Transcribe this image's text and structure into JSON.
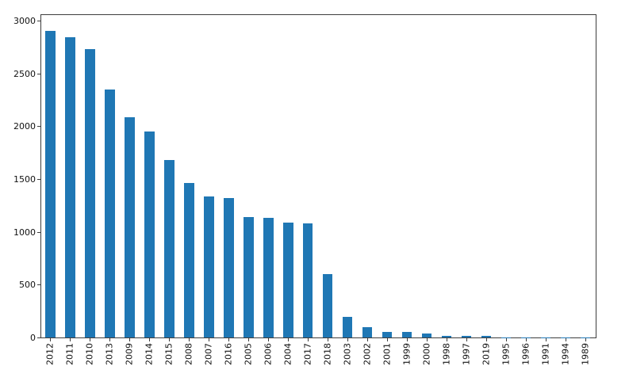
{
  "chart_data": {
    "type": "bar",
    "title": "",
    "xlabel": "",
    "ylabel": "",
    "categories": [
      "2012",
      "2011",
      "2010",
      "2013",
      "2009",
      "2014",
      "2015",
      "2008",
      "2007",
      "2016",
      "2005",
      "2006",
      "2004",
      "2017",
      "2018",
      "2003",
      "2002",
      "2001",
      "1999",
      "2000",
      "1998",
      "1997",
      "2019",
      "1995",
      "1996",
      "1991",
      "1994",
      "1989"
    ],
    "values": [
      2905,
      2845,
      2735,
      2350,
      2090,
      1950,
      1680,
      1465,
      1335,
      1325,
      1145,
      1135,
      1090,
      1080,
      600,
      198,
      98,
      55,
      53,
      42,
      17,
      14,
      13,
      3,
      2,
      1,
      1,
      1
    ],
    "yticks": [
      "0",
      "500",
      "1000",
      "1500",
      "2000",
      "2500",
      "3000"
    ],
    "ytick_values": [
      0,
      500,
      1000,
      1500,
      2000,
      2500,
      3000
    ],
    "ylim": [
      0,
      3065
    ],
    "grid": false,
    "legend": null,
    "x_label_rotation_deg": 90,
    "colors": {
      "bar": "#1f77b4",
      "axis": "#3d3d3d",
      "tick_label": "#111111",
      "background": "#ffffff"
    }
  }
}
